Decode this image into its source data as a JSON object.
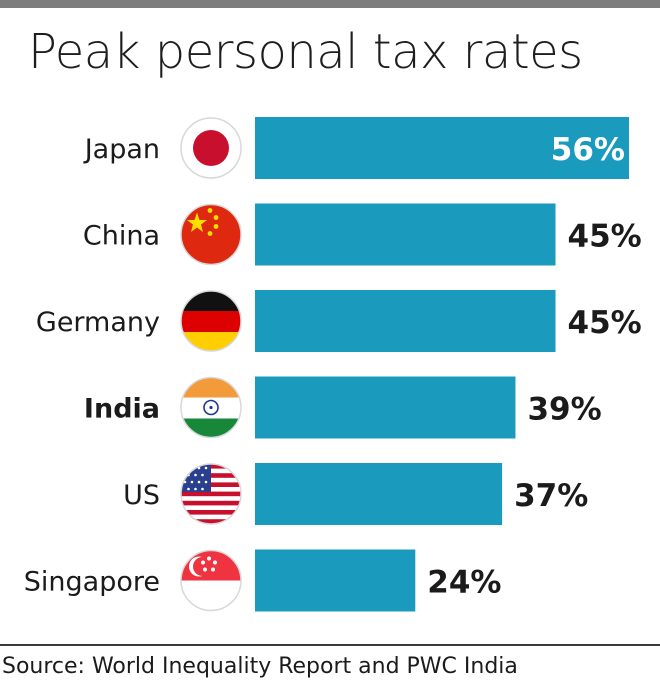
{
  "chart_data": {
    "type": "bar",
    "orientation": "horizontal",
    "title": "Peak personal tax rates",
    "categories": [
      "Japan",
      "China",
      "Germany",
      "India",
      "US",
      "Singapore"
    ],
    "values": [
      56,
      45,
      45,
      39,
      37,
      24
    ],
    "value_labels": [
      "56%",
      "45%",
      "45%",
      "39%",
      "37%",
      "24%"
    ],
    "highlighted_category": "India",
    "flags": [
      "japan-flag-icon",
      "china-flag-icon",
      "germany-flag-icon",
      "india-flag-icon",
      "us-flag-icon",
      "singapore-flag-icon"
    ],
    "xlim": [
      0,
      56
    ],
    "grid": false,
    "legend": "none",
    "bar_color": "#1a9bbd"
  },
  "source": "Source: World Inequality Report and PWC India"
}
